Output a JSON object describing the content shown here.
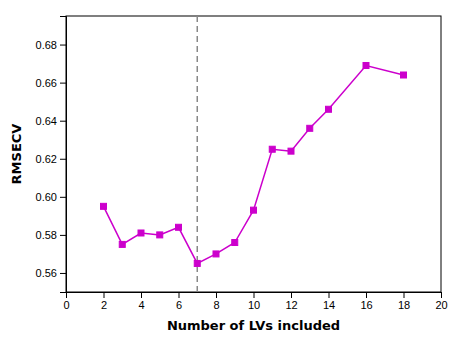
{
  "chart_data": {
    "type": "line",
    "xlabel": "Number of LVs included",
    "ylabel": "RMSECV",
    "x": [
      2,
      3,
      4,
      5,
      6,
      7,
      8,
      9,
      10,
      11,
      12,
      13,
      14,
      16,
      18
    ],
    "values": [
      0.595,
      0.575,
      0.581,
      0.58,
      0.584,
      0.565,
      0.57,
      0.576,
      0.593,
      0.625,
      0.624,
      0.636,
      0.646,
      0.669,
      0.664
    ],
    "color": "#CC00CC",
    "marker": "square",
    "reference_line": {
      "x": 7,
      "color": "#888888",
      "line_style": "dashed"
    },
    "xlim": [
      0,
      20
    ],
    "ylim": [
      0.55,
      0.695
    ],
    "xticks": [
      0,
      2,
      4,
      6,
      8,
      10,
      12,
      14,
      16,
      18,
      20
    ],
    "yticks": [
      0.56,
      0.58,
      {
        "value": 0.6,
        "label": "0.60"
      },
      0.62,
      0.64,
      0.66,
      0.68
    ],
    "grid": false
  }
}
